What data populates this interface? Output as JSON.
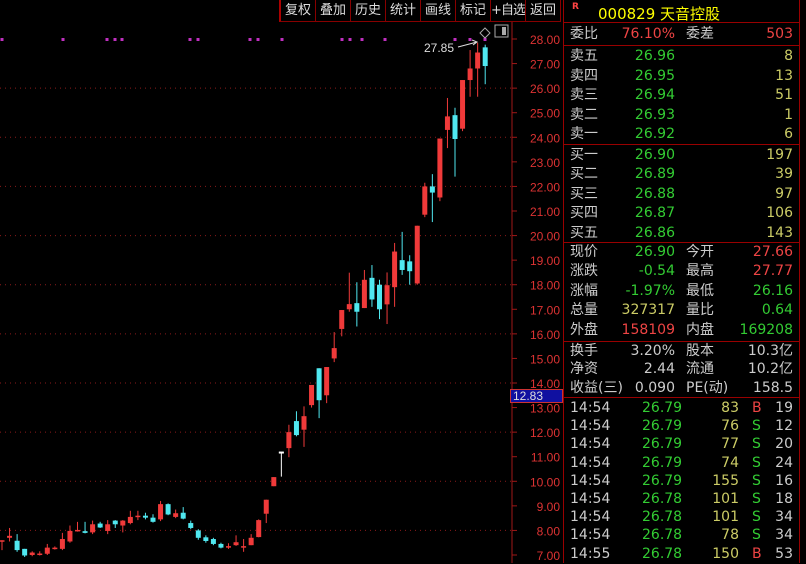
{
  "toolbar": {
    "items": [
      "复权",
      "叠加",
      "历史",
      "统计",
      "画线",
      "标记",
      "+自选",
      "返回"
    ]
  },
  "stock": {
    "badge": "R",
    "code": "000829",
    "name": "天音控股"
  },
  "ratio": {
    "label": "委比",
    "value": "76.10%",
    "diff_label": "委差",
    "diff": "503"
  },
  "sell": [
    {
      "label": "卖五",
      "price": "26.96",
      "vol": "8"
    },
    {
      "label": "卖四",
      "price": "26.95",
      "vol": "13"
    },
    {
      "label": "卖三",
      "price": "26.94",
      "vol": "51"
    },
    {
      "label": "卖二",
      "price": "26.93",
      "vol": "1"
    },
    {
      "label": "卖一",
      "price": "26.92",
      "vol": "6"
    }
  ],
  "buy": [
    {
      "label": "买一",
      "price": "26.90",
      "vol": "197"
    },
    {
      "label": "买二",
      "price": "26.89",
      "vol": "39"
    },
    {
      "label": "买三",
      "price": "26.88",
      "vol": "97"
    },
    {
      "label": "买四",
      "price": "26.87",
      "vol": "106"
    },
    {
      "label": "买五",
      "price": "26.86",
      "vol": "143"
    }
  ],
  "quote": [
    {
      "l1": "现价",
      "v1": "26.90",
      "c1": "g",
      "l2": "今开",
      "v2": "27.66",
      "c2": "r2"
    },
    {
      "l1": "涨跌",
      "v1": "-0.54",
      "c1": "g",
      "l2": "最高",
      "v2": "27.77",
      "c2": "r2"
    },
    {
      "l1": "涨幅",
      "v1": "-1.97%",
      "c1": "g",
      "l2": "最低",
      "v2": "26.16",
      "c2": "g"
    },
    {
      "l1": "总量",
      "v1": "327317",
      "c1": "y",
      "l2": "量比",
      "v2": "0.64",
      "c2": "g"
    },
    {
      "l1": "外盘",
      "v1": "158109",
      "c1": "r2",
      "l2": "内盘",
      "v2": "169208",
      "c2": "g"
    }
  ],
  "fund": [
    {
      "l1": "换手",
      "v1": "3.20%",
      "l2": "股本",
      "v2": "10.3亿"
    },
    {
      "l1": "净资",
      "v1": "2.44",
      "l2": "流通",
      "v2": "10.2亿"
    },
    {
      "l1": "收益(三)",
      "v1": "0.090",
      "l2": "PE(动)",
      "v2": "158.5"
    }
  ],
  "ticks": [
    {
      "time": "14:54",
      "price": "26.79",
      "vol": "83",
      "side": "B",
      "n": "19"
    },
    {
      "time": "14:54",
      "price": "26.79",
      "vol": "76",
      "side": "S",
      "n": "12"
    },
    {
      "time": "14:54",
      "price": "26.79",
      "vol": "77",
      "side": "S",
      "n": "20"
    },
    {
      "time": "14:54",
      "price": "26.79",
      "vol": "74",
      "side": "S",
      "n": "24"
    },
    {
      "time": "14:54",
      "price": "26.79",
      "vol": "155",
      "side": "S",
      "n": "16"
    },
    {
      "time": "14:54",
      "price": "26.78",
      "vol": "101",
      "side": "S",
      "n": "18"
    },
    {
      "time": "14:54",
      "price": "26.78",
      "vol": "101",
      "side": "S",
      "n": "34"
    },
    {
      "time": "14:54",
      "price": "26.78",
      "vol": "78",
      "side": "S",
      "n": "34"
    },
    {
      "time": "14:55",
      "price": "26.78",
      "vol": "150",
      "side": "B",
      "n": "53"
    }
  ],
  "colors": {
    "up": "#f03a3a",
    "down": "#50e8f0",
    "flat": "#ffffff",
    "grid": "#8a1a1a",
    "marker": "#c030c0"
  },
  "axis": {
    "cursor_label": "12.83",
    "max_label": "27.85"
  },
  "chart_data": {
    "type": "candlestick",
    "ylim": [
      7,
      28
    ],
    "yticks": [
      "28.00",
      "27.00",
      "26.00",
      "25.00",
      "24.00",
      "23.00",
      "22.00",
      "21.00",
      "20.00",
      "19.00",
      "18.00",
      "17.00",
      "16.00",
      "15.00",
      "14.00",
      "13.00",
      "12.00",
      "11.00",
      "10.00",
      "9.00",
      "8.00",
      "7.00"
    ],
    "ohlc": [
      [
        7.55,
        7.6,
        7.6,
        7.2
      ],
      [
        7.7,
        7.78,
        8.1,
        7.55
      ],
      [
        7.58,
        7.2,
        7.85,
        7.13
      ],
      [
        7.25,
        6.98,
        7.25,
        6.92
      ],
      [
        7.0,
        7.1,
        7.15,
        6.95
      ],
      [
        7.03,
        7.06,
        7.15,
        6.98
      ],
      [
        7.05,
        7.3,
        7.45,
        7.0
      ],
      [
        7.25,
        7.3,
        7.35,
        7.22
      ],
      [
        7.25,
        7.65,
        7.9,
        7.2
      ],
      [
        7.55,
        7.98,
        8.2,
        7.5
      ],
      [
        7.98,
        8.02,
        8.35,
        7.95
      ],
      [
        7.97,
        7.9,
        8.35,
        7.88
      ],
      [
        7.92,
        8.25,
        8.4,
        7.85
      ],
      [
        8.28,
        8.12,
        8.35,
        8.1
      ],
      [
        7.98,
        8.25,
        8.42,
        7.85
      ],
      [
        8.4,
        8.25,
        8.42,
        8.1
      ],
      [
        8.2,
        8.4,
        8.42,
        7.92
      ],
      [
        8.3,
        8.55,
        8.8,
        8.25
      ],
      [
        8.55,
        8.6,
        8.8,
        8.42
      ],
      [
        8.6,
        8.52,
        8.72,
        8.45
      ],
      [
        8.52,
        8.35,
        8.66,
        8.32
      ],
      [
        8.45,
        9.07,
        9.2,
        8.38
      ],
      [
        9.07,
        8.65,
        9.1,
        8.62
      ],
      [
        8.55,
        8.7,
        8.85,
        8.5
      ],
      [
        8.72,
        8.48,
        8.95,
        8.45
      ],
      [
        8.3,
        8.1,
        8.4,
        8.05
      ],
      [
        8.0,
        7.7,
        8.05,
        7.62
      ],
      [
        7.72,
        7.57,
        7.8,
        7.5
      ],
      [
        7.65,
        7.45,
        7.7,
        7.4
      ],
      [
        7.45,
        7.3,
        7.5,
        7.27
      ],
      [
        7.33,
        7.36,
        7.48,
        7.25
      ],
      [
        7.4,
        7.52,
        7.8,
        7.37
      ],
      [
        7.33,
        7.36,
        7.65,
        7.13
      ],
      [
        7.4,
        7.7,
        7.85,
        7.4
      ],
      [
        7.73,
        8.42,
        8.45,
        7.72
      ],
      [
        8.68,
        9.25,
        9.25,
        8.3
      ],
      [
        9.8,
        10.17,
        10.17,
        9.8
      ],
      [
        11.19,
        11.19,
        11.19,
        10.19
      ],
      [
        11.35,
        12.0,
        12.3,
        10.98
      ],
      [
        12.45,
        11.88,
        12.85,
        11.83
      ],
      [
        12.1,
        12.65,
        13.05,
        11.4
      ],
      [
        13.1,
        13.92,
        13.92,
        13.0
      ],
      [
        14.6,
        13.3,
        14.6,
        12.57
      ],
      [
        13.5,
        14.65,
        14.65,
        13.18
      ],
      [
        15.0,
        15.42,
        16.07,
        14.85
      ],
      [
        16.2,
        16.97,
        16.97,
        15.9
      ],
      [
        17.0,
        17.21,
        18.49,
        16.9
      ],
      [
        17.25,
        16.9,
        18.1,
        16.3
      ],
      [
        17.05,
        18.2,
        18.6,
        17.05
      ],
      [
        18.28,
        17.4,
        18.8,
        17.1
      ],
      [
        18.0,
        17.0,
        18.2,
        16.6
      ],
      [
        17.2,
        17.98,
        18.5,
        16.4
      ],
      [
        17.9,
        19.35,
        19.7,
        17.1
      ],
      [
        19.0,
        18.6,
        20.15,
        18.4
      ],
      [
        18.95,
        18.55,
        19.2,
        18.0
      ],
      [
        18.05,
        20.4,
        20.4,
        18.0
      ],
      [
        20.85,
        22.0,
        22.15,
        20.75
      ],
      [
        22.0,
        21.75,
        22.5,
        20.55
      ],
      [
        21.55,
        23.95,
        23.95,
        21.4
      ],
      [
        24.3,
        24.85,
        25.6,
        23.56
      ],
      [
        24.9,
        23.93,
        25.2,
        22.4
      ],
      [
        24.35,
        26.33,
        26.33,
        24.25
      ],
      [
        26.33,
        26.8,
        27.55,
        25.65
      ],
      [
        26.8,
        27.45,
        27.85,
        25.65
      ],
      [
        27.66,
        26.9,
        27.77,
        26.16
      ]
    ]
  }
}
